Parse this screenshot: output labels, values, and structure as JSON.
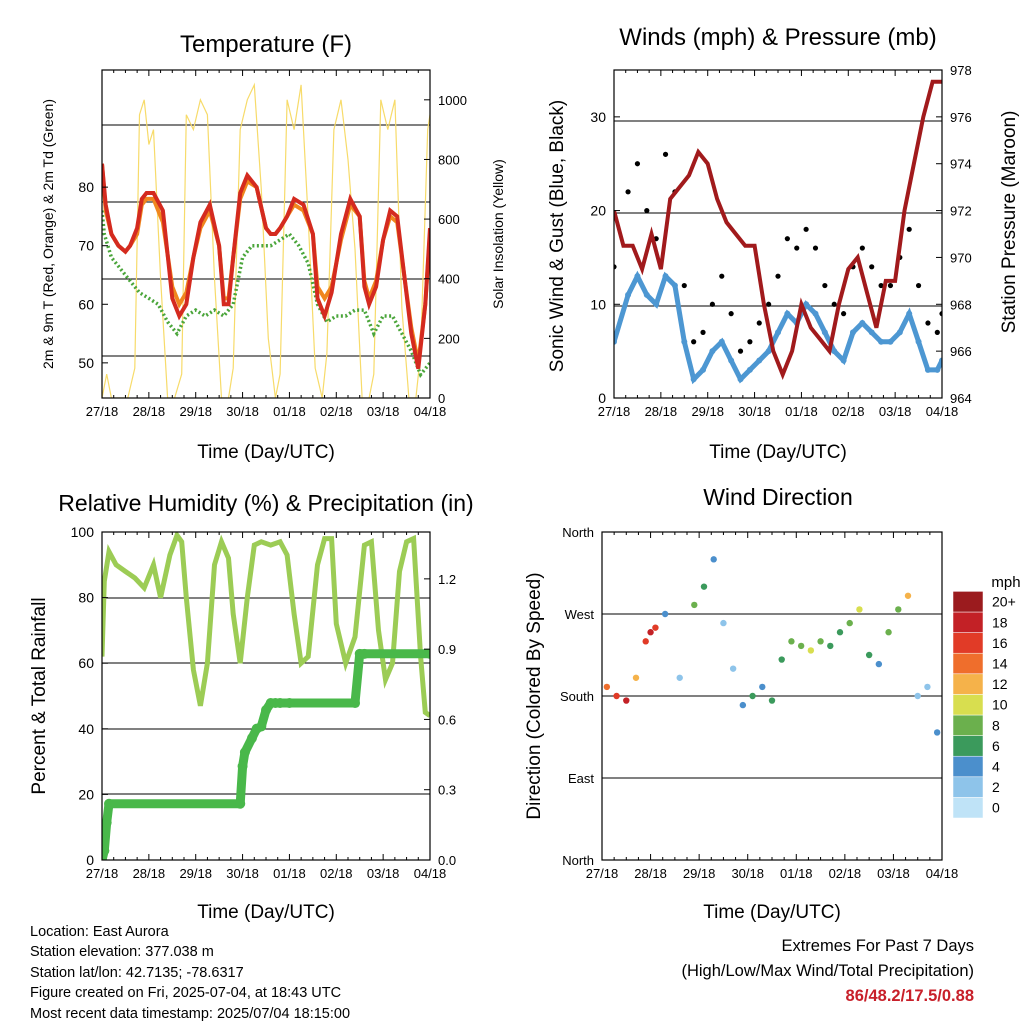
{
  "x_ticks": [
    "27/18",
    "28/18",
    "29/18",
    "30/18",
    "01/18",
    "02/18",
    "03/18",
    "04/18"
  ],
  "panels": {
    "temperature": {
      "title": "Temperature (F)",
      "xlabel": "Time (Day/UTC)",
      "ylabel_left": "2m & 9m T (Red, Orange) & 2m Td (Green)",
      "ylabel_right": "Solar Insolation (Yellow)",
      "left_ticks": [
        "50",
        "60",
        "70",
        "80"
      ],
      "right_ticks": [
        "0",
        "200",
        "400",
        "600",
        "800",
        "1000"
      ]
    },
    "winds": {
      "title": "Winds (mph) & Pressure (mb)",
      "xlabel": "Time (Day/UTC)",
      "ylabel_left": "Sonic Wind & Gust (Blue, Black)",
      "ylabel_right": "Station Pressure (Maroon)",
      "left_ticks": [
        "0",
        "10",
        "20",
        "30"
      ],
      "right_ticks": [
        "964",
        "966",
        "968",
        "970",
        "972",
        "974",
        "976",
        "978"
      ]
    },
    "humidity": {
      "title": "Relative Humidity (%) & Precipitation (in)",
      "xlabel": "Time (Day/UTC)",
      "ylabel_left": "Percent & Total Rainfall",
      "left_ticks": [
        "0",
        "20",
        "40",
        "60",
        "80",
        "100"
      ],
      "right_ticks": [
        "0.0",
        "0.3",
        "0.6",
        "0.9",
        "1.2"
      ]
    },
    "direction": {
      "title": "Wind Direction",
      "xlabel": "Time (Day/UTC)",
      "ylabel_left": "Direction (Colored By Speed)",
      "left_ticks": [
        "North",
        "East",
        "South",
        "West",
        "North"
      ],
      "legend_title": "mph",
      "legend_labels": [
        "0",
        "2",
        "4",
        "6",
        "8",
        "10",
        "12",
        "14",
        "16",
        "18",
        "20+"
      ],
      "legend_colors": [
        "#bfe3f7",
        "#8ec4ea",
        "#4b8fcc",
        "#3b9a5c",
        "#6bb04d",
        "#d8de4f",
        "#f5b24a",
        "#ef6e2c",
        "#e13b27",
        "#c32126",
        "#9b1b1e"
      ]
    }
  },
  "colors": {
    "temp2m": "#d42a1f",
    "temp9m": "#f0861e",
    "dewpoint": "#4aa53a",
    "solar": "#f7db6a",
    "wind": "#4d97d2",
    "gust": "#000000",
    "pressure": "#a11a1c",
    "rh": "#9ccc55",
    "rain": "#49b84a"
  },
  "footer": {
    "location": "Location: East Aurora",
    "elevation": "Station elevation: 377.038 m",
    "latlon": "Station lat/lon: 42.7135; -78.6317",
    "created": "Figure created on Fri, 2025-07-04, at 18:43 UTC",
    "recent": "Most recent data timestamp: 2025/07/04 18:15:00"
  },
  "extremes": {
    "line1": "Extremes For Past 7 Days",
    "line2": "(High/Low/Max Wind/Total Precipitation)",
    "value": "86/48.2/17.5/0.88"
  },
  "chart_data": [
    {
      "type": "line",
      "panel": "temperature",
      "x_unit": "days since 27/18",
      "xlim": [
        0,
        7
      ],
      "ylim": [
        44,
        100
      ],
      "y2lim": [
        0,
        1100
      ],
      "series": [
        {
          "name": "2m T",
          "axis": "left",
          "x": [
            0,
            0.08,
            0.2,
            0.35,
            0.5,
            0.6,
            0.75,
            0.85,
            0.95,
            1.1,
            1.3,
            1.5,
            1.65,
            1.8,
            1.95,
            2.1,
            2.3,
            2.5,
            2.6,
            2.7,
            2.8,
            2.95,
            3.1,
            3.3,
            3.5,
            3.6,
            3.7,
            3.8,
            3.95,
            4.1,
            4.3,
            4.5,
            4.6,
            4.75,
            4.9,
            5.1,
            5.3,
            5.5,
            5.6,
            5.7,
            5.85,
            6.0,
            6.15,
            6.3,
            6.45,
            6.6,
            6.75,
            6.9,
            7.0
          ],
          "y": [
            84,
            77,
            72,
            70,
            69,
            70,
            73,
            78,
            79,
            79,
            76,
            61,
            58,
            60,
            68,
            74,
            77,
            70,
            60,
            60,
            68,
            79,
            82,
            80,
            73,
            72,
            72,
            73,
            75,
            78,
            77,
            72,
            61,
            58,
            62,
            72,
            78,
            75,
            63,
            60,
            63,
            71,
            76,
            75,
            65,
            55,
            49,
            60,
            73
          ]
        },
        {
          "name": "9m T",
          "axis": "left",
          "x": [
            0,
            0.08,
            0.2,
            0.35,
            0.5,
            0.6,
            0.75,
            0.85,
            0.95,
            1.1,
            1.3,
            1.5,
            1.65,
            1.8,
            1.95,
            2.1,
            2.3,
            2.5,
            2.6,
            2.7,
            2.8,
            2.95,
            3.1,
            3.3,
            3.5,
            3.6,
            3.7,
            3.8,
            3.95,
            4.1,
            4.3,
            4.5,
            4.6,
            4.75,
            4.9,
            5.1,
            5.3,
            5.5,
            5.6,
            5.7,
            5.85,
            6.0,
            6.15,
            6.3,
            6.45,
            6.6,
            6.75,
            6.9,
            7.0
          ],
          "y": [
            84,
            76,
            72,
            70,
            69,
            70,
            72,
            77,
            78,
            78,
            74,
            63,
            60,
            62,
            68,
            73,
            76,
            70,
            61,
            61,
            68,
            78,
            81,
            80,
            73,
            72,
            72,
            73,
            75,
            77,
            76,
            72,
            63,
            61,
            63,
            71,
            77,
            75,
            64,
            61,
            64,
            71,
            75,
            74,
            65,
            56,
            50,
            60,
            72
          ]
        },
        {
          "name": "2m Td",
          "axis": "left",
          "x": [
            0,
            0.05,
            0.2,
            0.4,
            0.6,
            0.8,
            1.0,
            1.2,
            1.4,
            1.6,
            1.8,
            2.0,
            2.2,
            2.4,
            2.6,
            2.8,
            3.0,
            3.2,
            3.4,
            3.6,
            3.8,
            4.0,
            4.2,
            4.4,
            4.6,
            4.8,
            5.0,
            5.2,
            5.4,
            5.6,
            5.8,
            6.0,
            6.2,
            6.4,
            6.6,
            6.8,
            7.0
          ],
          "y": [
            76,
            72,
            68,
            66,
            64,
            62,
            61,
            60,
            57,
            55,
            58,
            59,
            58,
            59,
            58,
            60,
            68,
            70,
            70,
            70,
            71,
            72,
            70,
            67,
            60,
            57,
            58,
            58,
            59,
            59,
            55,
            58,
            58,
            55,
            52,
            48,
            50
          ]
        },
        {
          "name": "Solar Insolation",
          "axis": "right",
          "x": [
            0,
            0.1,
            0.2,
            0.4,
            0.55,
            0.7,
            0.8,
            0.9,
            1.0,
            1.1,
            1.25,
            1.4,
            1.55,
            1.7,
            1.8,
            1.95,
            2.1,
            2.25,
            2.4,
            2.55,
            2.7,
            2.8,
            2.95,
            3.1,
            3.25,
            3.4,
            3.55,
            3.7,
            3.8,
            3.95,
            4.1,
            4.25,
            4.4,
            4.55,
            4.7,
            4.8,
            4.95,
            5.1,
            5.25,
            5.4,
            5.55,
            5.7,
            5.8,
            5.95,
            6.1,
            6.25,
            6.4,
            6.55,
            6.7,
            6.8,
            6.95,
            7.0
          ],
          "y": [
            0,
            80,
            0,
            0,
            0,
            100,
            950,
            1000,
            850,
            900,
            400,
            0,
            0,
            80,
            950,
            900,
            1000,
            950,
            400,
            0,
            0,
            100,
            900,
            1000,
            1050,
            700,
            200,
            0,
            80,
            1000,
            900,
            1050,
            600,
            100,
            0,
            150,
            900,
            1000,
            800,
            500,
            0,
            0,
            80,
            1000,
            900,
            1000,
            300,
            0,
            0,
            150,
            900,
            950
          ]
        }
      ]
    },
    {
      "type": "scatter",
      "panel": "winds",
      "x_unit": "days since 27/18",
      "xlim": [
        0,
        7
      ],
      "ylim": [
        0,
        35
      ],
      "y2lim": [
        964,
        978
      ],
      "series": [
        {
          "name": "Gust",
          "axis": "left",
          "x": [
            0,
            0.3,
            0.5,
            0.7,
            0.9,
            1.1,
            1.3,
            1.5,
            1.7,
            1.9,
            2.1,
            2.3,
            2.5,
            2.7,
            2.9,
            3.1,
            3.3,
            3.5,
            3.7,
            3.9,
            4.1,
            4.3,
            4.5,
            4.7,
            4.9,
            5.1,
            5.3,
            5.5,
            5.7,
            5.9,
            6.1,
            6.3,
            6.5,
            6.7,
            6.9,
            7.0
          ],
          "y": [
            14,
            22,
            25,
            20,
            17,
            26,
            22,
            12,
            6,
            7,
            10,
            13,
            9,
            5,
            6,
            8,
            10,
            13,
            17,
            16,
            18,
            16,
            12,
            10,
            9,
            14,
            16,
            14,
            12,
            12,
            15,
            18,
            12,
            8,
            7,
            9
          ]
        },
        {
          "name": "Wind",
          "axis": "left",
          "x": [
            0,
            0.3,
            0.5,
            0.7,
            0.9,
            1.1,
            1.3,
            1.5,
            1.7,
            1.9,
            2.1,
            2.3,
            2.5,
            2.7,
            2.9,
            3.1,
            3.3,
            3.5,
            3.7,
            3.9,
            4.1,
            4.3,
            4.5,
            4.7,
            4.9,
            5.1,
            5.3,
            5.5,
            5.7,
            5.9,
            6.1,
            6.3,
            6.5,
            6.7,
            6.9,
            7.0
          ],
          "y": [
            6,
            11,
            13,
            11,
            10,
            13,
            12,
            6,
            2,
            3,
            5,
            6,
            4,
            2,
            3,
            4,
            5,
            7,
            9,
            8,
            10,
            9,
            7,
            5,
            4,
            7,
            8,
            7,
            6,
            6,
            7,
            9,
            6,
            3,
            3,
            4
          ]
        },
        {
          "name": "Station Pressure",
          "axis": "right",
          "type": "line",
          "x": [
            0,
            0.2,
            0.4,
            0.6,
            0.8,
            1.0,
            1.2,
            1.4,
            1.6,
            1.8,
            2.0,
            2.2,
            2.4,
            2.6,
            2.8,
            3.0,
            3.2,
            3.4,
            3.6,
            3.8,
            4.0,
            4.2,
            4.4,
            4.6,
            4.8,
            5.0,
            5.2,
            5.4,
            5.6,
            5.8,
            6.0,
            6.2,
            6.4,
            6.6,
            6.8,
            7.0
          ],
          "y": [
            972,
            970.5,
            970.5,
            969.5,
            971,
            969.5,
            972.5,
            973,
            973.5,
            974.5,
            974,
            972.5,
            971.5,
            971,
            970.5,
            970.5,
            968,
            966,
            965,
            966,
            968,
            967,
            966.5,
            966,
            968,
            969.5,
            970,
            968.5,
            967,
            969,
            969,
            972,
            974,
            976,
            977.5,
            977.5
          ]
        }
      ]
    },
    {
      "type": "line",
      "panel": "humidity",
      "x_unit": "days since 27/18",
      "xlim": [
        0,
        7
      ],
      "ylim": [
        0,
        100
      ],
      "y2lim": [
        0,
        1.4
      ],
      "series": [
        {
          "name": "Relative Humidity",
          "axis": "left",
          "x": [
            0,
            0.05,
            0.15,
            0.3,
            0.5,
            0.7,
            0.9,
            1.1,
            1.25,
            1.45,
            1.6,
            1.7,
            1.8,
            1.95,
            2.1,
            2.25,
            2.4,
            2.55,
            2.7,
            2.8,
            2.95,
            3.1,
            3.25,
            3.4,
            3.6,
            3.8,
            3.95,
            4.1,
            4.25,
            4.4,
            4.6,
            4.75,
            4.9,
            5.0,
            5.2,
            5.4,
            5.6,
            5.75,
            5.9,
            6.05,
            6.2,
            6.35,
            6.5,
            6.65,
            6.8,
            6.9,
            7.0
          ],
          "y": [
            62,
            85,
            94,
            90,
            88,
            86,
            83,
            90,
            80,
            93,
            99,
            97,
            80,
            58,
            47,
            60,
            90,
            97,
            92,
            75,
            60,
            80,
            96,
            97,
            96,
            97,
            93,
            75,
            60,
            62,
            90,
            98,
            98,
            72,
            60,
            68,
            96,
            97,
            70,
            55,
            60,
            88,
            97,
            98,
            62,
            45,
            44
          ]
        },
        {
          "name": "Total Rainfall",
          "axis": "right",
          "x": [
            0,
            0.05,
            0.1,
            0.15,
            2.95,
            3.0,
            3.05,
            3.2,
            3.3,
            3.4,
            3.5,
            3.6,
            3.7,
            3.8,
            4.0,
            5.4,
            5.5,
            5.6,
            7.0
          ],
          "y": [
            0,
            0.04,
            0.16,
            0.24,
            0.24,
            0.4,
            0.46,
            0.52,
            0.56,
            0.57,
            0.64,
            0.67,
            0.67,
            0.67,
            0.67,
            0.67,
            0.88,
            0.88,
            0.88
          ]
        }
      ]
    },
    {
      "type": "scatter",
      "panel": "direction",
      "x_unit": "days since 27/18",
      "xlim": [
        0,
        7
      ],
      "ylim_degrees": [
        0,
        360
      ],
      "series": [
        {
          "name": "Direction by speed",
          "x": [
            0.1,
            0.3,
            0.5,
            0.7,
            0.9,
            1.0,
            1.1,
            1.3,
            1.6,
            1.9,
            2.1,
            2.3,
            2.5,
            2.7,
            2.9,
            3.1,
            3.3,
            3.5,
            3.7,
            3.9,
            4.1,
            4.3,
            4.5,
            4.7,
            4.9,
            5.1,
            5.3,
            5.5,
            5.7,
            5.9,
            6.1,
            6.3,
            6.5,
            6.7,
            6.9
          ],
          "y": [
            190,
            180,
            175,
            200,
            240,
            250,
            255,
            270,
            200,
            280,
            300,
            330,
            260,
            210,
            170,
            180,
            190,
            175,
            220,
            240,
            235,
            230,
            240,
            235,
            250,
            260,
            275,
            225,
            215,
            250,
            275,
            290,
            180,
            190,
            140
          ],
          "speed": [
            14,
            16,
            18,
            12,
            16,
            18,
            16,
            4,
            3,
            8,
            6,
            5,
            2,
            3,
            4,
            6,
            5,
            7,
            6,
            9,
            8,
            10,
            8,
            7,
            6,
            9,
            10,
            6,
            5,
            8,
            9,
            12,
            3,
            2,
            4
          ]
        }
      ]
    }
  ]
}
